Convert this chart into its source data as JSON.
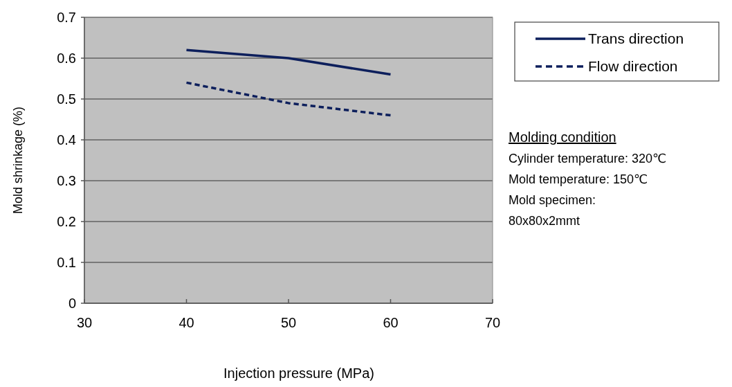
{
  "chart_data": {
    "type": "line",
    "xlabel": "Injection pressure (MPa)",
    "ylabel": "Mold shrinkage (%)",
    "x": [
      40,
      50,
      60
    ],
    "series": [
      {
        "name": "Trans direction",
        "color": "#0d1f5c",
        "values": [
          0.62,
          0.6,
          0.56
        ],
        "line_style": "solid"
      },
      {
        "name": "Flow direction",
        "color": "#0d1f5c",
        "values": [
          0.54,
          0.49,
          0.46
        ],
        "line_style": "dashed"
      }
    ],
    "xlim": [
      30,
      70
    ],
    "xticks": [
      30,
      40,
      50,
      60,
      70
    ],
    "ylim": [
      0,
      0.7
    ],
    "yticks": [
      0,
      0.1,
      0.2,
      0.3,
      0.4,
      0.5,
      0.6,
      0.7
    ],
    "grid": "y",
    "legend": "top right",
    "marker": "none",
    "annotations": [
      "Molding condition",
      "Cylinder temperature: 320℃",
      "Mold temperature: 150℃",
      "Mold specimen:",
      "80x80x2mmt"
    ]
  }
}
